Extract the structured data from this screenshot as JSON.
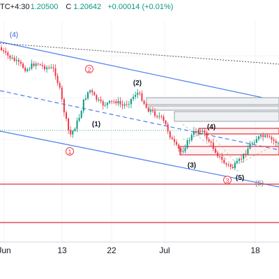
{
  "header": {
    "timezone_fragment": "TC+4:30",
    "open_fragment": "1.20500",
    "close_label": "C",
    "close_value": "1.20642",
    "change": "+0.00014 (+0.01%)"
  },
  "colors": {
    "up": "#089981",
    "down": "#f23645",
    "channel": "#4a7df0",
    "wave_label_red": "#f23645",
    "wave_label_blue": "#2f5fd0",
    "wave_label_black": "#131722",
    "zone_gray": "#9aa0a6",
    "zone_red": "#e0303a",
    "support_line": "#e0303a"
  },
  "x_axis": {
    "ticks": [
      "Jun",
      "13",
      "22",
      "Jul",
      "18"
    ]
  },
  "wave_labels": [
    {
      "text": "(4)",
      "style": "blue"
    },
    {
      "text": "2",
      "style": "red-circle"
    },
    {
      "text": "(2)",
      "style": "black"
    },
    {
      "text": "(1)",
      "style": "black"
    },
    {
      "text": "1",
      "style": "red-circle"
    },
    {
      "text": "(4)",
      "style": "black"
    },
    {
      "text": "(3)",
      "style": "black"
    },
    {
      "text": "(5)",
      "style": "black"
    },
    {
      "text": "3",
      "style": "red-circle"
    },
    {
      "text": "(5)",
      "style": "gray"
    }
  ],
  "chart_data": {
    "type": "candlestick",
    "series_seed": 7,
    "trend": [
      [
        0,
        68
      ],
      [
        10,
        78
      ],
      [
        20,
        85
      ],
      [
        30,
        92
      ],
      [
        40,
        100
      ],
      [
        50,
        92
      ],
      [
        55,
        90
      ],
      [
        62,
        95
      ],
      [
        70,
        97
      ],
      [
        80,
        100
      ],
      [
        88,
        130
      ],
      [
        95,
        165
      ],
      [
        102,
        195
      ],
      [
        108,
        185
      ],
      [
        115,
        170
      ],
      [
        122,
        145
      ],
      [
        130,
        128
      ],
      [
        138,
        140
      ],
      [
        148,
        150
      ],
      [
        158,
        148
      ],
      [
        168,
        145
      ],
      [
        178,
        152
      ],
      [
        188,
        145
      ],
      [
        198,
        132
      ],
      [
        205,
        140
      ],
      [
        212,
        155
      ],
      [
        222,
        162
      ],
      [
        232,
        168
      ],
      [
        240,
        180
      ],
      [
        248,
        200
      ],
      [
        256,
        212
      ],
      [
        262,
        218
      ],
      [
        270,
        205
      ],
      [
        280,
        190
      ],
      [
        290,
        185
      ],
      [
        300,
        200
      ],
      [
        310,
        215
      ],
      [
        318,
        228
      ],
      [
        326,
        236
      ],
      [
        336,
        240
      ],
      [
        344,
        232
      ],
      [
        352,
        222
      ],
      [
        360,
        208
      ],
      [
        370,
        198
      ],
      [
        380,
        196
      ],
      [
        390,
        200
      ],
      [
        400,
        205
      ]
    ]
  }
}
